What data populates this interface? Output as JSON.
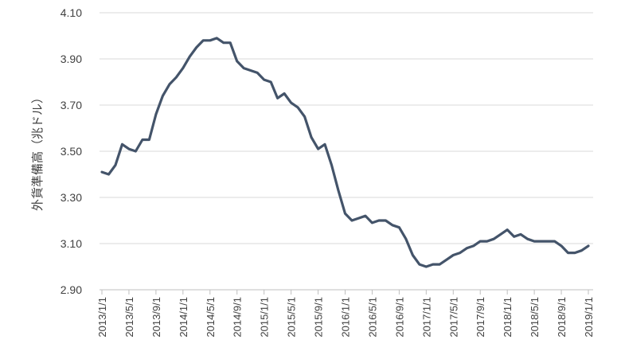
{
  "chart_data": {
    "type": "line",
    "title": "",
    "xlabel": "",
    "ylabel": "外貨準備高（兆ドル）",
    "ylim": [
      2.9,
      4.1
    ],
    "yticks": [
      "2.90",
      "3.10",
      "3.30",
      "3.50",
      "3.70",
      "3.90",
      "4.10"
    ],
    "xticks": [
      "2013/1/1",
      "2013/5/1",
      "2013/9/1",
      "2014/1/1",
      "2014/5/1",
      "2014/9/1",
      "2015/1/1",
      "2015/5/1",
      "2015/9/1",
      "2016/1/1",
      "2016/5/1",
      "2016/9/1",
      "2017/1/1",
      "2017/5/1",
      "2017/9/1",
      "2018/1/1",
      "2018/5/1",
      "2018/9/1",
      "2019/1/1"
    ],
    "grid": true,
    "line_color": "#44546a",
    "series": [
      {
        "x": [
          "2013-01",
          "2013-02",
          "2013-03",
          "2013-04",
          "2013-05",
          "2013-06",
          "2013-07",
          "2013-08",
          "2013-09",
          "2013-10",
          "2013-11",
          "2013-12",
          "2014-01",
          "2014-02",
          "2014-03",
          "2014-04",
          "2014-05",
          "2014-06",
          "2014-07",
          "2014-08",
          "2014-09",
          "2014-10",
          "2014-11",
          "2014-12",
          "2015-01",
          "2015-02",
          "2015-03",
          "2015-04",
          "2015-05",
          "2015-06",
          "2015-07",
          "2015-08",
          "2015-09",
          "2015-10",
          "2015-11",
          "2015-12",
          "2016-01",
          "2016-02",
          "2016-03",
          "2016-04",
          "2016-05",
          "2016-06",
          "2016-07",
          "2016-08",
          "2016-09",
          "2016-10",
          "2016-11",
          "2016-12",
          "2017-01",
          "2017-02",
          "2017-03",
          "2017-04",
          "2017-05",
          "2017-06",
          "2017-07",
          "2017-08",
          "2017-09",
          "2017-10",
          "2017-11",
          "2017-12",
          "2018-01",
          "2018-02",
          "2018-03",
          "2018-04",
          "2018-05",
          "2018-06",
          "2018-07",
          "2018-08",
          "2018-09",
          "2018-10",
          "2018-11",
          "2018-12",
          "2019-01"
        ],
        "values": [
          3.41,
          3.4,
          3.44,
          3.53,
          3.51,
          3.5,
          3.55,
          3.55,
          3.66,
          3.74,
          3.79,
          3.82,
          3.86,
          3.91,
          3.95,
          3.98,
          3.98,
          3.99,
          3.97,
          3.97,
          3.89,
          3.86,
          3.85,
          3.84,
          3.81,
          3.8,
          3.73,
          3.75,
          3.71,
          3.69,
          3.65,
          3.56,
          3.51,
          3.53,
          3.44,
          3.33,
          3.23,
          3.2,
          3.21,
          3.22,
          3.19,
          3.2,
          3.2,
          3.18,
          3.17,
          3.12,
          3.05,
          3.01,
          3.0,
          3.01,
          3.01,
          3.03,
          3.05,
          3.06,
          3.08,
          3.09,
          3.11,
          3.11,
          3.12,
          3.14,
          3.16,
          3.13,
          3.14,
          3.12,
          3.11,
          3.11,
          3.11,
          3.11,
          3.09,
          3.06,
          3.06,
          3.07,
          3.09
        ]
      }
    ]
  }
}
